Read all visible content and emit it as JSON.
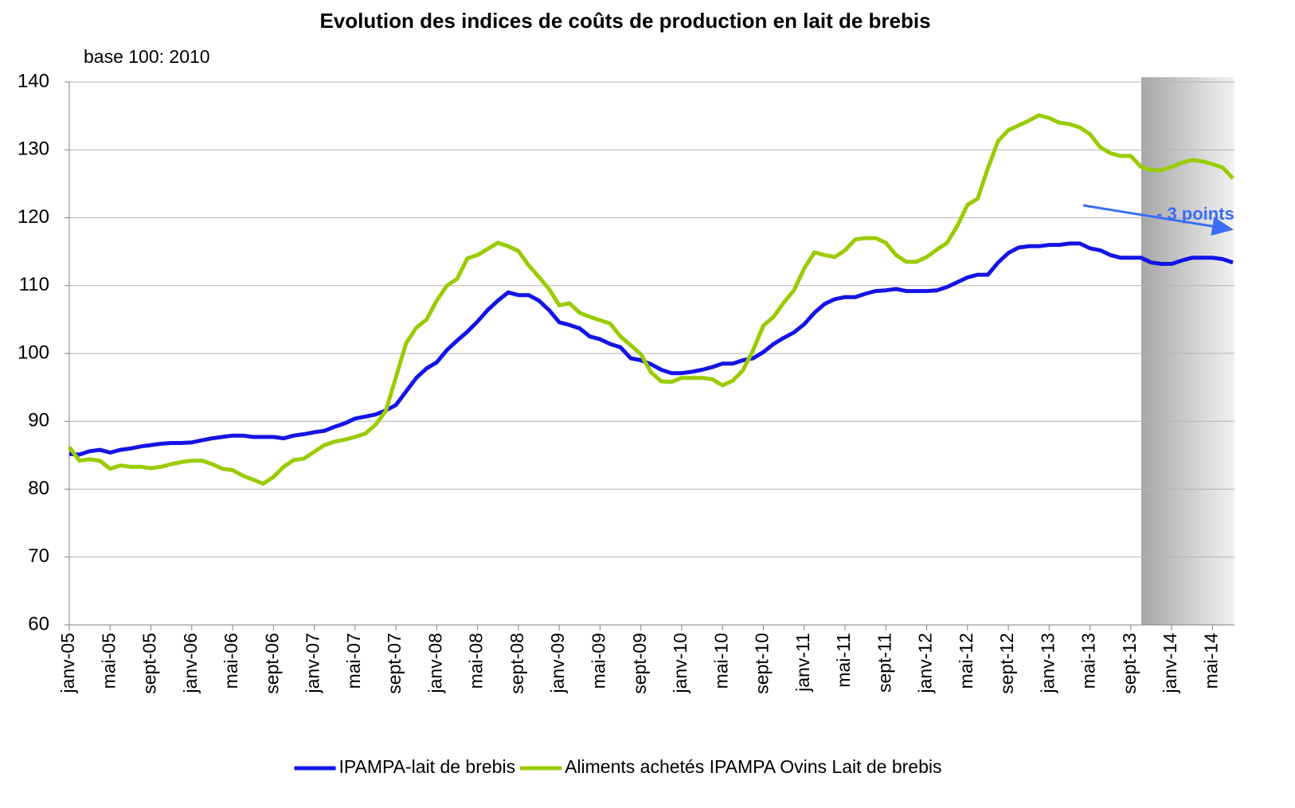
{
  "chart_data": {
    "type": "line",
    "title": "Evolution des indices de coûts de production en lait de brebis",
    "subtitle": "base 100: 2010",
    "annotation": "- 3 points",
    "categories": [
      "janv-05",
      null,
      null,
      null,
      "mai-05",
      null,
      null,
      null,
      "sept-05",
      null,
      null,
      null,
      "janv-06",
      null,
      null,
      null,
      "mai-06",
      null,
      null,
      null,
      "sept-06",
      null,
      null,
      null,
      "janv-07",
      null,
      null,
      null,
      "mai-07",
      null,
      null,
      null,
      "sept-07",
      null,
      null,
      null,
      "janv-08",
      null,
      null,
      null,
      "mai-08",
      null,
      null,
      null,
      "sept-08",
      null,
      null,
      null,
      "janv-09",
      null,
      null,
      null,
      "mai-09",
      null,
      null,
      null,
      "sept-09",
      null,
      null,
      null,
      "janv-10",
      null,
      null,
      null,
      "mai-10",
      null,
      null,
      null,
      "sept-10",
      null,
      null,
      null,
      "janv-11",
      null,
      null,
      null,
      "mai-11",
      null,
      null,
      null,
      "sept-11",
      null,
      null,
      null,
      "janv-12",
      null,
      null,
      null,
      "mai-12",
      null,
      null,
      null,
      "sept-12",
      null,
      null,
      null,
      "janv-13",
      null,
      null,
      null,
      "mai-13",
      null,
      null,
      null,
      "sept-13",
      null,
      null,
      null,
      "janv-14",
      null,
      null,
      null,
      "mai-14",
      null,
      null
    ],
    "series": [
      {
        "name": "IPAMPA-lait de brebis",
        "color": "#1414e6",
        "values": [
          85.2,
          85.1,
          85.6,
          85.8,
          85.4,
          85.8,
          86.0,
          86.3,
          86.5,
          86.7,
          86.8,
          86.8,
          86.9,
          87.2,
          87.5,
          87.7,
          87.9,
          87.9,
          87.7,
          87.7,
          87.7,
          87.5,
          87.9,
          88.1,
          88.4,
          88.6,
          89.2,
          89.7,
          90.4,
          90.7,
          91.0,
          91.6,
          92.4,
          94.4,
          96.4,
          97.8,
          98.7,
          100.5,
          101.9,
          103.2,
          104.7,
          106.4,
          107.8,
          109.0,
          108.6,
          108.6,
          107.8,
          106.4,
          104.6,
          104.2,
          103.7,
          102.5,
          102.1,
          101.4,
          100.9,
          99.3,
          99.0,
          98.4,
          97.6,
          97.1,
          97.1,
          97.3,
          97.6,
          98.0,
          98.5,
          98.5,
          99.0,
          99.3,
          100.2,
          101.4,
          102.3,
          103.1,
          104.3,
          106.0,
          107.3,
          108.0,
          108.3,
          108.3,
          108.8,
          109.2,
          109.3,
          109.5,
          109.2,
          109.2,
          109.2,
          109.3,
          109.8,
          110.5,
          111.2,
          111.6,
          111.6,
          113.4,
          114.8,
          115.6,
          115.8,
          115.8,
          116.0,
          116.0,
          116.2,
          116.2,
          115.5,
          115.2,
          114.5,
          114.1,
          114.1,
          114.1,
          113.4,
          113.2,
          113.2,
          113.7,
          114.1,
          114.1,
          114.1,
          113.9,
          113.4
        ]
      },
      {
        "name": "Aliments achetés IPAMPA Ovins Lait de brebis",
        "color": "#99cc00",
        "values": [
          86.2,
          84.2,
          84.4,
          84.2,
          83.0,
          83.5,
          83.3,
          83.3,
          83.1,
          83.3,
          83.7,
          84.0,
          84.2,
          84.2,
          83.7,
          83.0,
          82.8,
          82.0,
          81.4,
          80.8,
          81.8,
          83.3,
          84.3,
          84.5,
          85.5,
          86.5,
          87.0,
          87.3,
          87.7,
          88.2,
          89.5,
          91.5,
          96.5,
          101.5,
          103.8,
          105.0,
          107.8,
          110.0,
          111.0,
          114.0,
          114.5,
          115.4,
          116.3,
          115.8,
          115.1,
          113.0,
          111.3,
          109.5,
          107.1,
          107.4,
          106.0,
          105.4,
          104.9,
          104.4,
          102.5,
          101.2,
          99.9,
          97.2,
          95.9,
          95.8,
          96.4,
          96.4,
          96.4,
          96.2,
          95.3,
          96.0,
          97.5,
          100.5,
          104.1,
          105.4,
          107.5,
          109.3,
          112.5,
          114.9,
          114.5,
          114.2,
          115.2,
          116.8,
          117.0,
          117.0,
          116.3,
          114.5,
          113.5,
          113.5,
          114.2,
          115.3,
          116.3,
          118.8,
          121.9,
          122.8,
          127.3,
          131.3,
          132.9,
          133.6,
          134.3,
          135.1,
          134.7,
          134.0,
          133.8,
          133.3,
          132.3,
          130.4,
          129.5,
          129.1,
          129.1,
          127.5,
          127.0,
          127.0,
          127.5,
          128.1,
          128.5,
          128.3,
          127.9,
          127.4,
          125.8
        ]
      }
    ],
    "ylim": [
      60,
      140
    ],
    "yticks": [
      60,
      70,
      80,
      90,
      100,
      110,
      120,
      130,
      140
    ],
    "grid": true,
    "legend": "bottom"
  }
}
